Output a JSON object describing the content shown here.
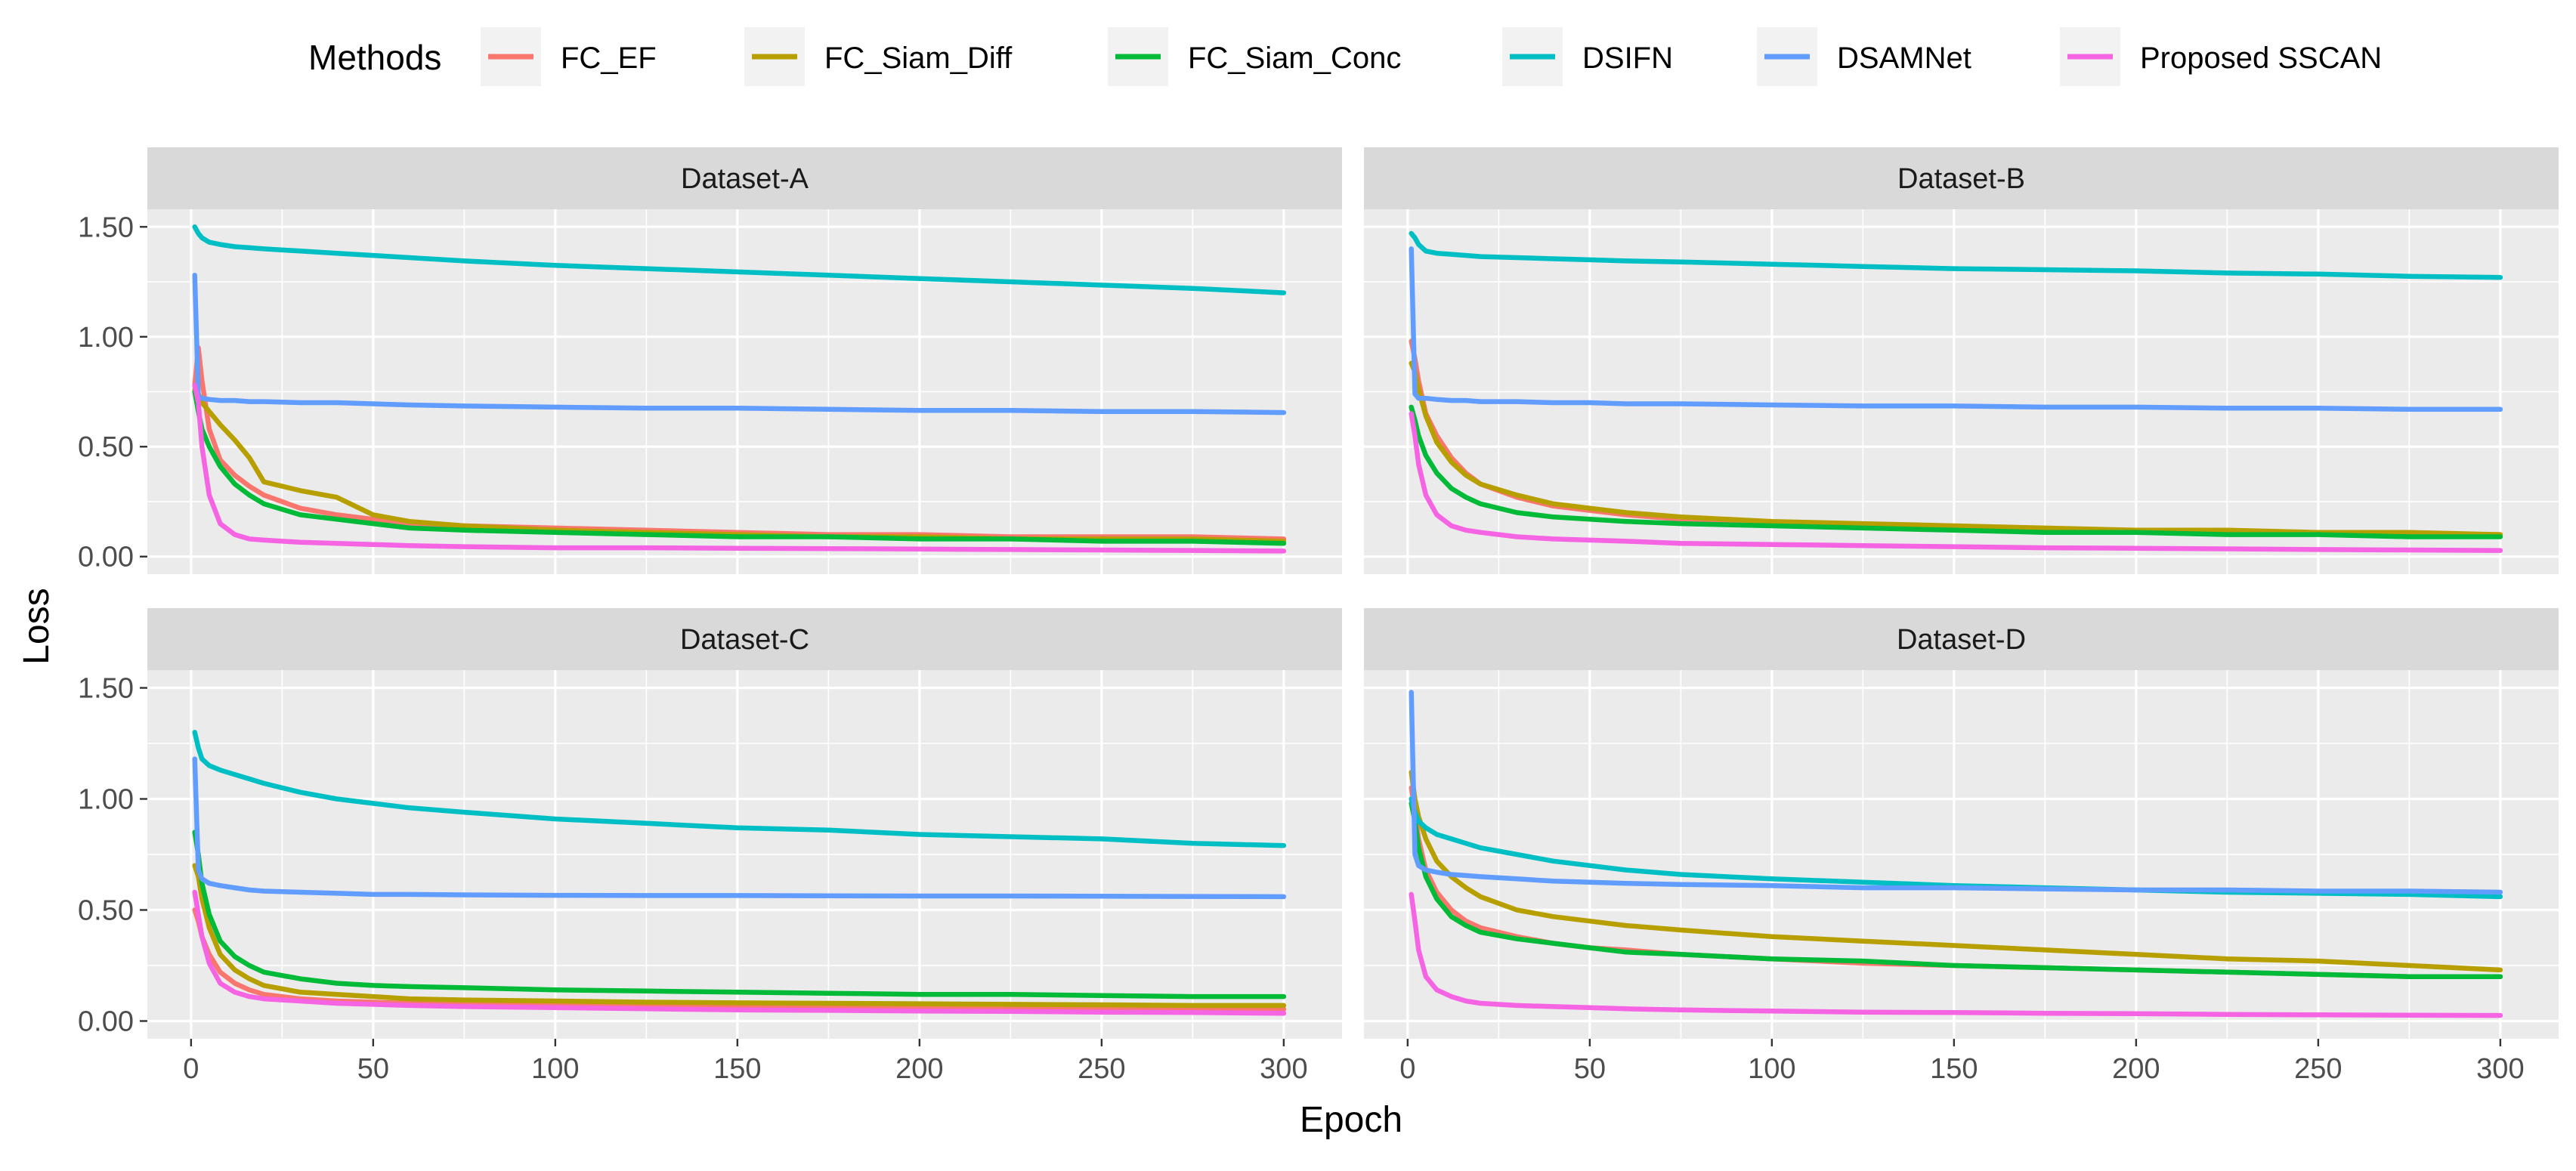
{
  "chart_data": {
    "type": "line",
    "xlabel": "Epoch",
    "ylabel": "Loss",
    "xlim": [
      -12,
      316
    ],
    "ylim": [
      -0.08,
      1.58
    ],
    "x_ticks": [
      0,
      50,
      100,
      150,
      200,
      250,
      300
    ],
    "x_tick_labels": [
      "0",
      "50",
      "100",
      "150",
      "200",
      "250",
      "300"
    ],
    "y_ticks": [
      0,
      0.5,
      1.0,
      1.5
    ],
    "y_tick_labels": [
      "0.00",
      "0.50",
      "1.00",
      "1.50"
    ],
    "grid": true,
    "legend": {
      "title": "Methods",
      "position": "top",
      "entries": [
        "FC_EF",
        "FC_Siam_Diff",
        "FC_Siam_Conc",
        "DSIFN",
        "DSAMNet",
        "Proposed SSCAN"
      ]
    },
    "colors": {
      "FC_EF": "#f8766d",
      "FC_Siam_Diff": "#b79f00",
      "FC_Siam_Conc": "#00ba38",
      "DSIFN": "#00bfc4",
      "DSAMNet": "#619cff",
      "Proposed SSCAN": "#f564e3"
    },
    "x": [
      1,
      2,
      3,
      5,
      8,
      12,
      16,
      20,
      30,
      40,
      50,
      60,
      75,
      100,
      125,
      150,
      175,
      200,
      225,
      250,
      275,
      300
    ],
    "panels": [
      {
        "title": "Dataset-A",
        "series": [
          {
            "name": "FC_EF",
            "values": [
              0.78,
              0.95,
              0.8,
              0.58,
              0.44,
              0.37,
              0.32,
              0.28,
              0.22,
              0.19,
              0.17,
              0.15,
              0.14,
              0.13,
              0.12,
              0.11,
              0.1,
              0.1,
              0.09,
              0.09,
              0.09,
              0.08
            ]
          },
          {
            "name": "FC_Siam_Diff",
            "values": [
              0.76,
              0.74,
              0.7,
              0.66,
              0.6,
              0.53,
              0.45,
              0.34,
              0.3,
              0.27,
              0.19,
              0.16,
              0.14,
              0.12,
              0.11,
              0.1,
              0.09,
              0.09,
              0.08,
              0.08,
              0.08,
              0.07
            ]
          },
          {
            "name": "FC_Siam_Conc",
            "values": [
              0.75,
              0.66,
              0.58,
              0.5,
              0.41,
              0.33,
              0.28,
              0.24,
              0.19,
              0.17,
              0.15,
              0.13,
              0.12,
              0.11,
              0.1,
              0.09,
              0.09,
              0.08,
              0.08,
              0.07,
              0.07,
              0.06
            ]
          },
          {
            "name": "DSIFN",
            "values": [
              1.5,
              1.47,
              1.45,
              1.43,
              1.42,
              1.41,
              1.405,
              1.4,
              1.39,
              1.38,
              1.37,
              1.36,
              1.345,
              1.325,
              1.31,
              1.295,
              1.28,
              1.265,
              1.25,
              1.235,
              1.22,
              1.2
            ]
          },
          {
            "name": "DSAMNet",
            "values": [
              1.28,
              0.73,
              0.72,
              0.715,
              0.71,
              0.71,
              0.705,
              0.705,
              0.7,
              0.7,
              0.695,
              0.69,
              0.685,
              0.68,
              0.675,
              0.675,
              0.67,
              0.665,
              0.665,
              0.66,
              0.66,
              0.655
            ]
          },
          {
            "name": "Proposed SSCAN",
            "values": [
              0.78,
              0.7,
              0.5,
              0.28,
              0.15,
              0.1,
              0.08,
              0.075,
              0.065,
              0.06,
              0.055,
              0.05,
              0.045,
              0.04,
              0.04,
              0.038,
              0.036,
              0.034,
              0.032,
              0.03,
              0.028,
              0.025
            ]
          }
        ]
      },
      {
        "title": "Dataset-B",
        "series": [
          {
            "name": "FC_EF",
            "values": [
              0.98,
              0.9,
              0.8,
              0.65,
              0.55,
              0.45,
              0.38,
              0.33,
              0.27,
              0.23,
              0.21,
              0.19,
              0.17,
              0.15,
              0.14,
              0.13,
              0.12,
              0.12,
              0.11,
              0.11,
              0.1,
              0.1
            ]
          },
          {
            "name": "FC_Siam_Diff",
            "values": [
              0.88,
              0.84,
              0.76,
              0.64,
              0.52,
              0.43,
              0.37,
              0.33,
              0.28,
              0.24,
              0.22,
              0.2,
              0.18,
              0.16,
              0.15,
              0.14,
              0.13,
              0.12,
              0.12,
              0.11,
              0.11,
              0.1
            ]
          },
          {
            "name": "FC_Siam_Conc",
            "values": [
              0.68,
              0.62,
              0.55,
              0.46,
              0.38,
              0.31,
              0.27,
              0.24,
              0.2,
              0.18,
              0.17,
              0.16,
              0.15,
              0.14,
              0.13,
              0.12,
              0.11,
              0.11,
              0.1,
              0.1,
              0.09,
              0.09
            ]
          },
          {
            "name": "DSIFN",
            "values": [
              1.47,
              1.45,
              1.42,
              1.39,
              1.38,
              1.375,
              1.37,
              1.365,
              1.36,
              1.355,
              1.35,
              1.345,
              1.34,
              1.33,
              1.32,
              1.31,
              1.305,
              1.3,
              1.29,
              1.285,
              1.275,
              1.27
            ]
          },
          {
            "name": "DSAMNet",
            "values": [
              1.4,
              0.74,
              0.72,
              0.72,
              0.715,
              0.71,
              0.71,
              0.705,
              0.705,
              0.7,
              0.7,
              0.695,
              0.695,
              0.69,
              0.685,
              0.685,
              0.68,
              0.68,
              0.675,
              0.675,
              0.67,
              0.67
            ]
          },
          {
            "name": "Proposed SSCAN",
            "values": [
              0.65,
              0.55,
              0.42,
              0.28,
              0.19,
              0.14,
              0.12,
              0.11,
              0.09,
              0.08,
              0.075,
              0.07,
              0.06,
              0.055,
              0.05,
              0.045,
              0.04,
              0.038,
              0.035,
              0.032,
              0.03,
              0.028
            ]
          }
        ]
      },
      {
        "title": "Dataset-C",
        "series": [
          {
            "name": "FC_EF",
            "values": [
              0.5,
              0.45,
              0.38,
              0.3,
              0.22,
              0.17,
              0.14,
              0.12,
              0.1,
              0.09,
              0.085,
              0.08,
              0.075,
              0.07,
              0.068,
              0.065,
              0.063,
              0.06,
              0.058,
              0.056,
              0.055,
              0.053
            ]
          },
          {
            "name": "FC_Siam_Diff",
            "values": [
              0.7,
              0.65,
              0.55,
              0.42,
              0.3,
              0.23,
              0.19,
              0.16,
              0.13,
              0.12,
              0.11,
              0.1,
              0.095,
              0.09,
              0.085,
              0.082,
              0.08,
              0.078,
              0.075,
              0.073,
              0.07,
              0.07
            ]
          },
          {
            "name": "FC_Siam_Conc",
            "values": [
              0.85,
              0.75,
              0.62,
              0.48,
              0.36,
              0.29,
              0.25,
              0.22,
              0.19,
              0.17,
              0.16,
              0.155,
              0.15,
              0.14,
              0.135,
              0.13,
              0.125,
              0.12,
              0.12,
              0.115,
              0.11,
              0.11
            ]
          },
          {
            "name": "DSIFN",
            "values": [
              1.3,
              1.23,
              1.18,
              1.15,
              1.13,
              1.11,
              1.09,
              1.07,
              1.03,
              1.0,
              0.98,
              0.96,
              0.94,
              0.91,
              0.89,
              0.87,
              0.86,
              0.84,
              0.83,
              0.82,
              0.8,
              0.79
            ]
          },
          {
            "name": "DSAMNet",
            "values": [
              1.18,
              0.68,
              0.64,
              0.62,
              0.61,
              0.6,
              0.59,
              0.585,
              0.58,
              0.575,
              0.57,
              0.57,
              0.568,
              0.566,
              0.565,
              0.565,
              0.564,
              0.563,
              0.563,
              0.562,
              0.561,
              0.56
            ]
          },
          {
            "name": "Proposed SSCAN",
            "values": [
              0.58,
              0.48,
              0.38,
              0.26,
              0.17,
              0.13,
              0.11,
              0.1,
              0.09,
              0.08,
              0.075,
              0.07,
              0.065,
              0.06,
              0.055,
              0.05,
              0.048,
              0.045,
              0.043,
              0.04,
              0.038,
              0.035
            ]
          }
        ]
      },
      {
        "title": "Dataset-D",
        "series": [
          {
            "name": "FC_EF",
            "values": [
              1.05,
              0.95,
              0.82,
              0.68,
              0.58,
              0.5,
              0.45,
              0.42,
              0.38,
              0.35,
              0.33,
              0.32,
              0.3,
              0.28,
              0.26,
              0.25,
              0.24,
              0.23,
              0.22,
              0.21,
              0.2,
              0.2
            ]
          },
          {
            "name": "FC_Siam_Diff",
            "values": [
              1.12,
              1.0,
              0.92,
              0.82,
              0.72,
              0.65,
              0.6,
              0.56,
              0.5,
              0.47,
              0.45,
              0.43,
              0.41,
              0.38,
              0.36,
              0.34,
              0.32,
              0.3,
              0.28,
              0.27,
              0.25,
              0.23
            ]
          },
          {
            "name": "FC_Siam_Conc",
            "values": [
              0.98,
              0.9,
              0.78,
              0.65,
              0.55,
              0.47,
              0.43,
              0.4,
              0.37,
              0.35,
              0.33,
              0.31,
              0.3,
              0.28,
              0.27,
              0.25,
              0.24,
              0.23,
              0.22,
              0.21,
              0.2,
              0.2
            ]
          },
          {
            "name": "DSIFN",
            "values": [
              1.0,
              0.94,
              0.9,
              0.87,
              0.84,
              0.82,
              0.8,
              0.78,
              0.75,
              0.72,
              0.7,
              0.68,
              0.66,
              0.64,
              0.625,
              0.61,
              0.6,
              0.59,
              0.58,
              0.575,
              0.57,
              0.56
            ]
          },
          {
            "name": "DSAMNet",
            "values": [
              1.48,
              0.75,
              0.7,
              0.68,
              0.67,
              0.66,
              0.655,
              0.65,
              0.64,
              0.63,
              0.625,
              0.62,
              0.615,
              0.61,
              0.6,
              0.6,
              0.595,
              0.59,
              0.59,
              0.585,
              0.585,
              0.58
            ]
          },
          {
            "name": "Proposed SSCAN",
            "values": [
              0.57,
              0.45,
              0.32,
              0.2,
              0.14,
              0.11,
              0.09,
              0.08,
              0.07,
              0.065,
              0.06,
              0.055,
              0.05,
              0.045,
              0.04,
              0.038,
              0.035,
              0.033,
              0.03,
              0.028,
              0.026,
              0.025
            ]
          }
        ]
      }
    ]
  }
}
